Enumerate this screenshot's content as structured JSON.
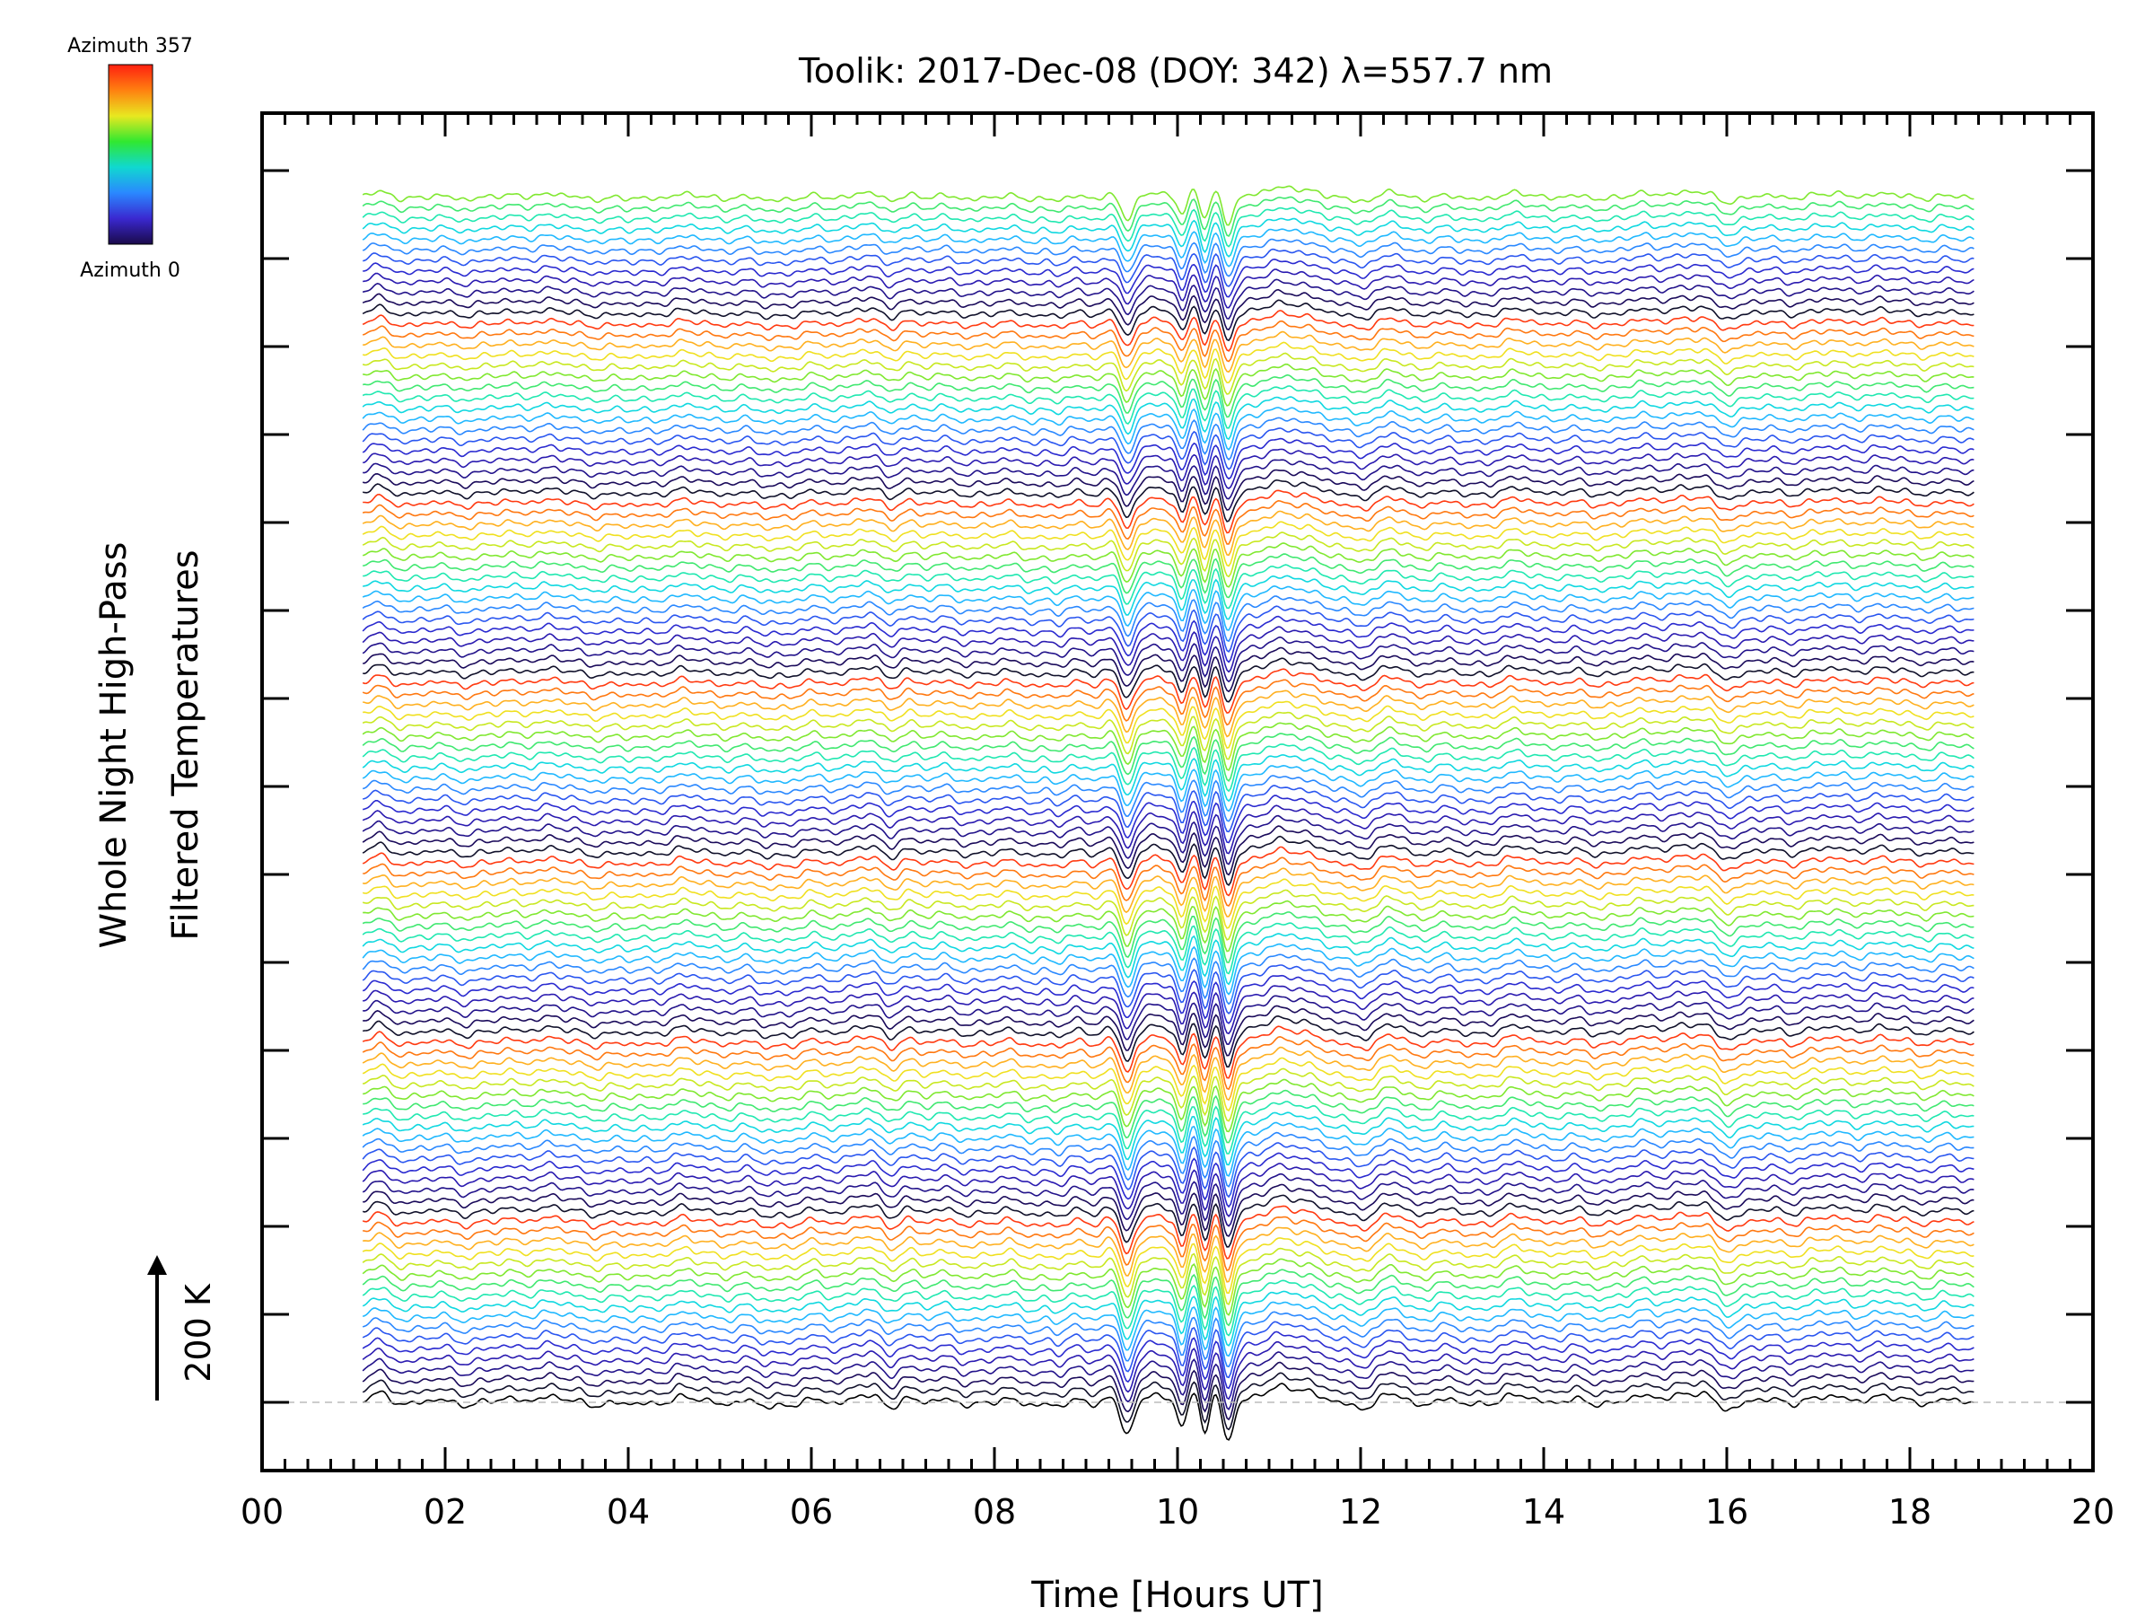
{
  "chart_data": {
    "type": "line",
    "title": "Toolik: 2017-Dec-08 (DOY: 342) λ=557.7 nm",
    "xlabel": "Time [Hours UT]",
    "ylabel_line1": "Whole Night High-Pass",
    "ylabel_line2": "Filtered Temperatures",
    "xlim": [
      0,
      20
    ],
    "x_ticks": [
      "00",
      "02",
      "04",
      "06",
      "08",
      "10",
      "12",
      "14",
      "16",
      "18",
      "20"
    ],
    "x_tick_values": [
      0,
      2,
      4,
      6,
      8,
      10,
      12,
      14,
      16,
      18,
      20
    ],
    "data_time_range": [
      1.1,
      18.7
    ],
    "scale_bar_label": "200 K",
    "colorbar": {
      "top_label": "Azimuth 357",
      "bottom_label": "Azimuth 0",
      "colors": [
        "#1a0a4a",
        "#3a28d0",
        "#2a88ff",
        "#10d8d0",
        "#30e830",
        "#e8e820",
        "#ff8010",
        "#ff2010"
      ]
    },
    "series_count": 115,
    "series_note": "",
    "baseline_dash_color": "#bbbbbb",
    "features": {
      "dips_hours": [
        9.45,
        10.05,
        10.3,
        10.55
      ],
      "peaks_hours": [
        1.3,
        3.0,
        6.55,
        7.0,
        9.25,
        10.2,
        10.45,
        11.2,
        12.3,
        13.8,
        15.5
      ]
    }
  }
}
